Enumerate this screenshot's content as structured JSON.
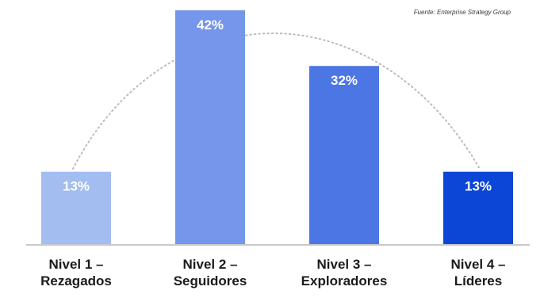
{
  "chart_data": {
    "type": "bar",
    "title": "",
    "source": "Fuente: Enterprise Strategy Group",
    "categories": [
      [
        "Nivel 1 –",
        "Rezagados"
      ],
      [
        "Nivel 2 –",
        "Seguidores"
      ],
      [
        "Nivel 3 –",
        "Exploradores"
      ],
      [
        "Nivel 4 –",
        "Líderes"
      ]
    ],
    "values": [
      13,
      42,
      32,
      13
    ],
    "value_labels": [
      "13%",
      "42%",
      "32%",
      "13%"
    ],
    "colors": [
      "#a3bdf0",
      "#7596ea",
      "#4c76e4",
      "#0c46d6"
    ],
    "label_color": "#ffffff",
    "axis_color": "#c9c9c9",
    "curve_color": "#bcbcbc",
    "ylim": [
      0,
      42
    ],
    "grid": false,
    "legend": "none",
    "trend_curve": "dotted bell curve"
  }
}
